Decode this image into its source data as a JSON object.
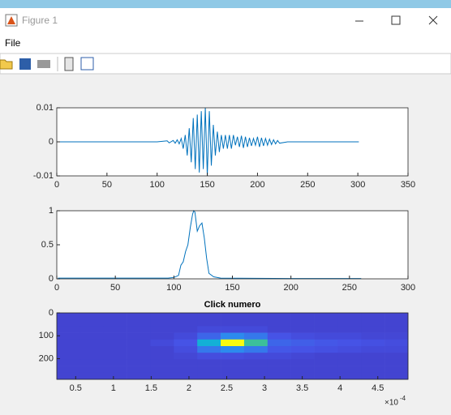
{
  "window": {
    "title": "Figure 1",
    "menu": [
      "File"
    ]
  },
  "chart_data": [
    {
      "type": "line",
      "color": "#0072bd",
      "x": [
        1,
        40,
        80,
        100,
        110,
        112,
        116,
        118,
        120,
        122,
        124,
        126,
        128,
        130,
        132,
        134,
        136,
        138,
        140,
        142,
        144,
        146,
        148,
        150,
        152,
        154,
        156,
        158,
        160,
        162,
        164,
        166,
        168,
        170,
        172,
        174,
        176,
        178,
        180,
        182,
        184,
        186,
        188,
        190,
        192,
        194,
        196,
        198,
        200,
        202,
        204,
        206,
        208,
        210,
        212,
        214,
        216,
        218,
        220,
        222,
        230,
        260,
        301
      ],
      "values": [
        0,
        0,
        0,
        0,
        0.0003,
        -0.0003,
        0.0004,
        -0.0004,
        0.0006,
        -0.0006,
        0.001,
        -0.002,
        0.002,
        -0.004,
        0.004,
        -0.006,
        0.007,
        -0.008,
        0.008,
        -0.009,
        0.009,
        -0.008,
        0.01,
        -0.01,
        0.009,
        -0.007,
        0.005,
        -0.004,
        0.003,
        -0.003,
        0.002,
        -0.002,
        0.002,
        -0.002,
        0.002,
        -0.002,
        0.002,
        -0.001,
        0.0015,
        -0.0015,
        0.0018,
        -0.0018,
        0.0015,
        -0.0015,
        0.0012,
        -0.0012,
        0.001,
        -0.001,
        0.0015,
        -0.0015,
        0.0012,
        -0.0012,
        0.001,
        -0.001,
        0.0008,
        -0.0008,
        0.0006,
        -0.0006,
        0.0004,
        -0.0004,
        0,
        0,
        0
      ],
      "xlim": [
        0,
        350
      ],
      "xticks": [
        0,
        50,
        100,
        150,
        200,
        250,
        300,
        350
      ],
      "ylim": [
        -0.01,
        0.01
      ],
      "yticks": [
        -0.01,
        0,
        0.01
      ]
    },
    {
      "type": "line",
      "color": "#0072bd",
      "x": [
        1,
        95,
        100,
        104,
        106,
        108,
        110,
        112,
        114,
        116,
        117,
        118,
        120,
        122,
        124,
        126,
        128,
        130,
        134,
        140,
        200,
        260
      ],
      "values": [
        0.01,
        0.01,
        0.02,
        0.05,
        0.2,
        0.25,
        0.4,
        0.5,
        0.75,
        0.95,
        1,
        0.98,
        0.7,
        0.78,
        0.82,
        0.6,
        0.3,
        0.08,
        0.03,
        0.01,
        0.005,
        0.005
      ],
      "xlim": [
        0,
        300
      ],
      "xticks": [
        0,
        50,
        100,
        150,
        200,
        250,
        300
      ],
      "ylim": [
        0,
        1
      ],
      "yticks": [
        0,
        0.5,
        1
      ]
    },
    {
      "type": "heatmap",
      "title": "Click numero",
      "colormap": "parula",
      "clim": [
        0,
        1
      ],
      "y_direction": "reverse",
      "x": [
        4.05e-05,
        7.15e-05,
        0.0001025,
        0.0001335,
        0.0001645,
        0.0001955,
        0.0002265,
        0.0002575,
        0.0002885,
        0.0003195,
        0.0003505,
        0.0003815,
        0.0004125,
        0.0004435,
        0.0004745
      ],
      "y": [
        14.5,
        43.5,
        72.5,
        101.5,
        130.5,
        159.5,
        188.5,
        217.5,
        246.5,
        275.5
      ],
      "z": [
        [
          0.1,
          0.1,
          0.1,
          0.1,
          0.1,
          0.1,
          0.1,
          0.1,
          0.1,
          0.1,
          0.1,
          0.1,
          0.1,
          0.1,
          0.1
        ],
        [
          0.1,
          0.1,
          0.1,
          0.1,
          0.1,
          0.1,
          0.1,
          0.1,
          0.1,
          0.1,
          0.1,
          0.1,
          0.1,
          0.1,
          0.1
        ],
        [
          0.1,
          0.1,
          0.1,
          0.1,
          0.1,
          0.1,
          0.12,
          0.12,
          0.12,
          0.1,
          0.1,
          0.1,
          0.1,
          0.1,
          0.1
        ],
        [
          0.1,
          0.1,
          0.1,
          0.1,
          0.1,
          0.12,
          0.2,
          0.3,
          0.25,
          0.15,
          0.13,
          0.12,
          0.12,
          0.11,
          0.11
        ],
        [
          0.1,
          0.1,
          0.1,
          0.1,
          0.12,
          0.15,
          0.45,
          1.0,
          0.6,
          0.2,
          0.18,
          0.16,
          0.15,
          0.14,
          0.13
        ],
        [
          0.1,
          0.1,
          0.1,
          0.1,
          0.1,
          0.13,
          0.25,
          0.3,
          0.25,
          0.16,
          0.15,
          0.14,
          0.13,
          0.12,
          0.12
        ],
        [
          0.1,
          0.1,
          0.1,
          0.1,
          0.1,
          0.11,
          0.13,
          0.13,
          0.12,
          0.12,
          0.11,
          0.1,
          0.1,
          0.1,
          0.1
        ],
        [
          0.1,
          0.1,
          0.1,
          0.1,
          0.1,
          0.1,
          0.1,
          0.1,
          0.1,
          0.1,
          0.1,
          0.1,
          0.1,
          0.1,
          0.1
        ],
        [
          0.1,
          0.1,
          0.1,
          0.1,
          0.1,
          0.1,
          0.1,
          0.1,
          0.1,
          0.1,
          0.1,
          0.1,
          0.1,
          0.1,
          0.1
        ],
        [
          0.1,
          0.1,
          0.1,
          0.1,
          0.1,
          0.1,
          0.1,
          0.1,
          0.1,
          0.1,
          0.1,
          0.1,
          0.1,
          0.1,
          0.1
        ]
      ],
      "xlim": [
        2.5e-05,
        0.00049
      ],
      "xticks": [
        {
          "value": 5e-05,
          "label": "0.5"
        },
        {
          "value": 0.0001,
          "label": "1"
        },
        {
          "value": 0.00015,
          "label": "1.5"
        },
        {
          "value": 0.0002,
          "label": "2"
        },
        {
          "value": 0.00025,
          "label": "2.5"
        },
        {
          "value": 0.0003,
          "label": "3"
        },
        {
          "value": 0.00035,
          "label": "3.5"
        },
        {
          "value": 0.0004,
          "label": "4"
        },
        {
          "value": 0.00045,
          "label": "4.5"
        }
      ],
      "x_multiplier": {
        "base": "×10",
        "exponent": "-4"
      },
      "ylim": [
        0,
        290
      ],
      "yticks": [
        0,
        100,
        200
      ]
    }
  ]
}
